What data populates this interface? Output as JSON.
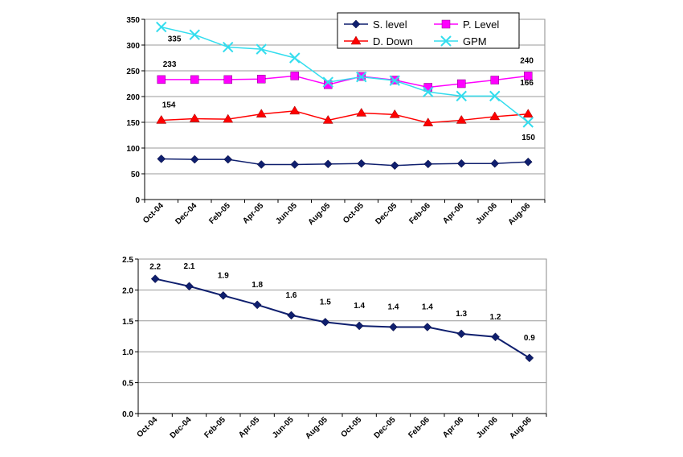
{
  "chart_data": [
    {
      "type": "line",
      "categories": [
        "Oct-04",
        "Dec-04",
        "Feb-05",
        "Apr-05",
        "Jun-05",
        "Aug-05",
        "Oct-05",
        "Dec-05",
        "Feb-06",
        "Apr-06",
        "Jun-06",
        "Aug-06"
      ],
      "series": [
        {
          "name": "S. level",
          "color": "#0f1f6e",
          "marker": "diamond",
          "values": [
            79,
            78,
            78,
            68,
            68,
            69,
            70,
            66,
            69,
            70,
            70,
            73
          ]
        },
        {
          "name": "P. Level",
          "color": "#ff00ff",
          "marker": "square",
          "values": [
            233,
            233,
            233,
            234,
            240,
            223,
            239,
            232,
            218,
            225,
            232,
            240
          ]
        },
        {
          "name": "D. Down",
          "color": "#ff0000",
          "marker": "triangle",
          "values": [
            154,
            157,
            156,
            166,
            172,
            154,
            168,
            165,
            149,
            154,
            161,
            166
          ]
        },
        {
          "name": "GPM",
          "color": "#33ddee",
          "marker": "x",
          "values": [
            335,
            320,
            296,
            292,
            275,
            228,
            238,
            231,
            209,
            201,
            201,
            150
          ]
        }
      ],
      "annotations": [
        {
          "text": "335",
          "anchor": "GPM first point"
        },
        {
          "text": "233",
          "anchor": "P. Level first point"
        },
        {
          "text": "154",
          "anchor": "D. Down first point"
        },
        {
          "text": "240",
          "anchor": "P. Level last point"
        },
        {
          "text": "166",
          "anchor": "D. Down last point"
        },
        {
          "text": "150",
          "anchor": "GPM last point"
        }
      ],
      "yticks": [
        "0",
        "50",
        "100",
        "150",
        "200",
        "250",
        "300",
        "350"
      ],
      "ylim": [
        0,
        350
      ],
      "grid": true,
      "legend_position": "top-right"
    },
    {
      "type": "line",
      "categories": [
        "Oct-04",
        "Dec-04",
        "Feb-05",
        "Apr-05",
        "Jun-05",
        "Aug-05",
        "Oct-05",
        "Dec-05",
        "Feb-06",
        "Apr-06",
        "Jun-06",
        "Aug-06"
      ],
      "series": [
        {
          "color": "#0f1f6e",
          "marker": "diamond",
          "values": [
            2.18,
            2.06,
            1.91,
            1.76,
            1.59,
            1.48,
            1.42,
            1.4,
            1.4,
            1.29,
            1.24,
            0.9
          ]
        }
      ],
      "data_labels": [
        "2.2",
        "2.1",
        "1.9",
        "1.8",
        "1.6",
        "1.5",
        "1.4",
        "1.4",
        "1.4",
        "1.3",
        "1.2",
        "0.9"
      ],
      "yticks": [
        "0.0",
        "0.5",
        "1.0",
        "1.5",
        "2.0",
        "2.5"
      ],
      "ylim": [
        0,
        2.5
      ],
      "grid": true
    }
  ]
}
